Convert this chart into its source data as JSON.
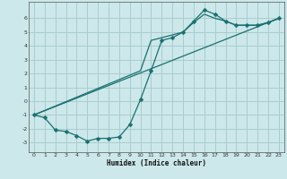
{
  "xlabel": "Humidex (Indice chaleur)",
  "bg_color": "#cce8ea",
  "grid_color": "#aaccce",
  "line_color": "#1a7070",
  "line1_x": [
    0,
    1,
    2,
    3,
    4,
    5,
    6,
    7,
    8,
    9,
    10,
    11,
    12,
    13,
    14,
    15,
    16,
    17,
    18,
    19,
    20,
    21,
    22,
    23
  ],
  "line1_y": [
    -1.0,
    -1.2,
    -2.1,
    -2.2,
    -2.5,
    -2.9,
    -2.7,
    -2.7,
    -2.6,
    -1.7,
    0.1,
    2.2,
    4.4,
    4.6,
    5.0,
    5.8,
    6.6,
    6.3,
    5.8,
    5.5,
    5.5,
    5.5,
    5.7,
    6.0
  ],
  "line2_x": [
    0,
    10,
    11,
    14,
    15,
    16,
    17,
    18,
    19,
    20,
    21,
    22,
    23
  ],
  "line2_y": [
    -1.0,
    2.2,
    4.4,
    5.0,
    5.7,
    6.3,
    6.0,
    5.8,
    5.5,
    5.5,
    5.5,
    5.7,
    6.0
  ],
  "line3_x": [
    0,
    23
  ],
  "line3_y": [
    -1.0,
    6.0
  ],
  "xlim": [
    -0.5,
    23.5
  ],
  "ylim": [
    -3.7,
    7.2
  ],
  "yticks": [
    -3,
    -2,
    -1,
    0,
    1,
    2,
    3,
    4,
    5,
    6
  ],
  "xticks": [
    0,
    1,
    2,
    3,
    4,
    5,
    6,
    7,
    8,
    9,
    10,
    11,
    12,
    13,
    14,
    15,
    16,
    17,
    18,
    19,
    20,
    21,
    22,
    23
  ]
}
